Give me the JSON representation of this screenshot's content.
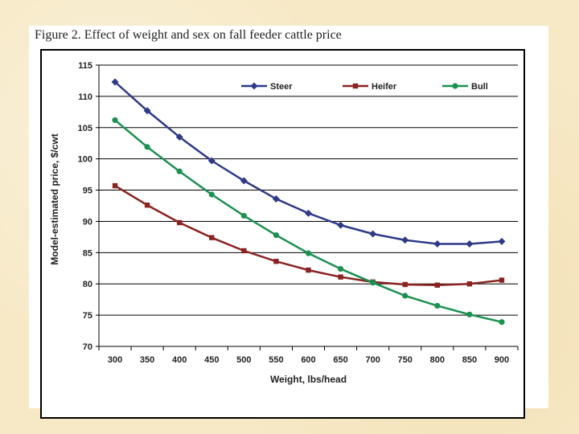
{
  "slide": {
    "title": "Figure 2. Effect of weight and sex on fall feeder cattle price"
  },
  "chart_data": {
    "type": "line",
    "title": "Figure 2. Effect of weight and sex on fall feeder cattle price",
    "xlabel": "Weight, lbs/head",
    "ylabel": "Model-estimated price, $/cwt",
    "categories": [
      "300",
      "350",
      "400",
      "450",
      "500",
      "550",
      "600",
      "650",
      "700",
      "750",
      "800",
      "850",
      "900"
    ],
    "ylim": [
      70,
      115
    ],
    "yticks": [
      "70",
      "75",
      "80",
      "85",
      "90",
      "95",
      "100",
      "105",
      "110",
      "115"
    ],
    "grid": true,
    "legend_position": "top",
    "series": [
      {
        "name": "Steer",
        "color": "#2e3a87",
        "marker": "diamond",
        "values": [
          112.3,
          107.7,
          103.5,
          99.7,
          96.5,
          93.6,
          91.3,
          89.4,
          88.0,
          87.0,
          86.4,
          86.4,
          86.8
        ]
      },
      {
        "name": "Heifer",
        "color": "#8b2323",
        "marker": "square",
        "values": [
          95.7,
          92.6,
          89.8,
          87.4,
          85.3,
          83.6,
          82.2,
          81.1,
          80.3,
          79.9,
          79.8,
          80.0,
          80.6
        ]
      },
      {
        "name": "Bull",
        "color": "#1b9150",
        "marker": "circle",
        "values": [
          106.2,
          101.9,
          98.0,
          94.3,
          90.9,
          87.8,
          84.9,
          82.4,
          80.2,
          78.1,
          76.5,
          75.1,
          73.9
        ]
      }
    ]
  }
}
